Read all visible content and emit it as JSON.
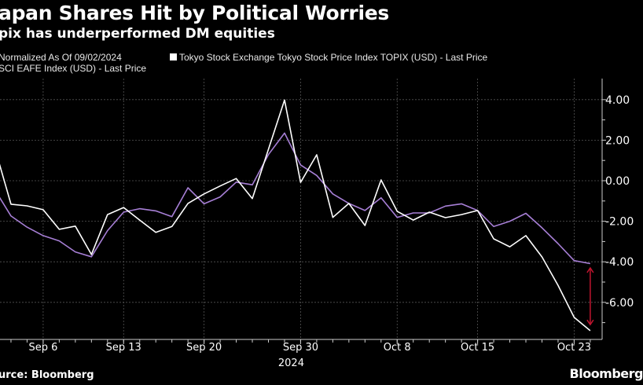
{
  "header": {
    "title": "apan Shares Hit by Political Worries",
    "subtitle": "pix has underperformed DM equities"
  },
  "legend": {
    "normalized_note": "Normalized As Of 09/02/2024",
    "items": [
      {
        "label": "Tokyo Stock Exchange Tokyo Stock Price Index TOPIX (USD) - Last Price",
        "color": "#ffffff"
      },
      {
        "label": "SCI EAFE Index (USD) - Last Price",
        "color": "#a77fd6"
      }
    ]
  },
  "footer": {
    "source": "urce: Bloomberg",
    "logo": "Bloomberg"
  },
  "chart_data": {
    "type": "line",
    "x": [
      "2024-09-03",
      "2024-09-04",
      "2024-09-05",
      "2024-09-06",
      "2024-09-09",
      "2024-09-10",
      "2024-09-11",
      "2024-09-12",
      "2024-09-13",
      "2024-09-16",
      "2024-09-17",
      "2024-09-18",
      "2024-09-19",
      "2024-09-20",
      "2024-09-23",
      "2024-09-24",
      "2024-09-25",
      "2024-09-26",
      "2024-09-27",
      "2024-09-30",
      "2024-10-01",
      "2024-10-02",
      "2024-10-03",
      "2024-10-04",
      "2024-10-07",
      "2024-10-08",
      "2024-10-09",
      "2024-10-10",
      "2024-10-11",
      "2024-10-14",
      "2024-10-15",
      "2024-10-16",
      "2024-10-17",
      "2024-10-18",
      "2024-10-21",
      "2024-10-22",
      "2024-10-23",
      "2024-10-24"
    ],
    "series": [
      {
        "name": "Tokyo Stock Exchange Tokyo Stock Price Index TOPIX (USD) - Last Price",
        "color": "#ffffff",
        "values": [
          1.6,
          -1.16,
          -1.24,
          -1.43,
          -2.4,
          -2.24,
          -3.64,
          -1.67,
          -1.32,
          -1.94,
          -2.55,
          -2.26,
          -1.12,
          -0.65,
          -0.26,
          0.11,
          -0.88,
          1.55,
          3.98,
          -0.08,
          1.28,
          -1.81,
          -1.12,
          -2.21,
          0.04,
          -1.51,
          -1.94,
          -1.55,
          -1.82,
          -1.67,
          -1.47,
          -2.87,
          -3.26,
          -2.71,
          -3.76,
          -5.16,
          -6.74,
          -7.4
        ]
      },
      {
        "name": "SCI EAFE Index (USD) - Last Price",
        "color": "#a77fd6",
        "values": [
          -0.45,
          -1.74,
          -2.29,
          -2.71,
          -2.97,
          -3.51,
          -3.75,
          -2.46,
          -1.55,
          -1.38,
          -1.49,
          -1.77,
          -0.35,
          -1.14,
          -0.8,
          -0.07,
          -0.2,
          1.29,
          2.35,
          0.78,
          0.26,
          -0.65,
          -1.12,
          -1.47,
          -0.84,
          -1.81,
          -1.59,
          -1.59,
          -1.25,
          -1.14,
          -1.47,
          -2.26,
          -2.0,
          -1.61,
          -2.32,
          -3.1,
          -3.94,
          -4.09
        ]
      }
    ],
    "x_tick_labels": [
      {
        "date": "2024-09-06",
        "label": "Sep 6"
      },
      {
        "date": "2024-09-13",
        "label": "Sep 13"
      },
      {
        "date": "2024-09-20",
        "label": "Sep 20"
      },
      {
        "date": "2024-09-30",
        "label": "Sep 30"
      },
      {
        "date": "2024-10-08",
        "label": "Oct 8"
      },
      {
        "date": "2024-10-15",
        "label": "Oct 15"
      },
      {
        "date": "2024-10-23",
        "label": "Oct 23"
      }
    ],
    "x_year_label": "2024",
    "y_ticks": [
      4,
      2,
      0,
      -2,
      -4,
      -6
    ],
    "y_tick_labels": [
      "4.00",
      "2.00",
      "0.00",
      "-2.00",
      "-4.00",
      "-6.00"
    ],
    "ylim": [
      -7.8,
      5
    ],
    "y_axis_side": "right",
    "grid": true,
    "annotation": {
      "type": "double-arrow",
      "date": "2024-10-24",
      "from": -4.3,
      "to": -7.1,
      "color": "#c0152f"
    }
  }
}
